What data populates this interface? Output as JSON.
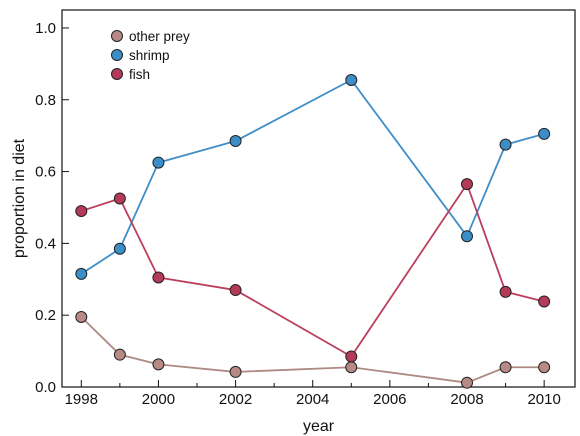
{
  "chart_data": {
    "type": "line",
    "title": "",
    "xlabel": "year",
    "ylabel": "proportion in diet",
    "xlim": [
      1997.5,
      2010.8
    ],
    "ylim": [
      0.0,
      1.05
    ],
    "grid": false,
    "legend_position": "top-left",
    "x_ticks": [
      1998,
      2000,
      2002,
      2004,
      2006,
      2008,
      2010
    ],
    "x_minor_ticks": [
      1999,
      2001,
      2003,
      2005,
      2007,
      2009
    ],
    "y_ticks": [
      "0.0",
      "0.2",
      "0.4",
      "0.6",
      "0.8",
      "1.0"
    ],
    "series": [
      {
        "name": "other prey",
        "color": "#b88a86",
        "line_color": "#ad8a82",
        "x": [
          1998,
          1999,
          2000,
          2002,
          2005,
          2008,
          2009,
          2010
        ],
        "values": [
          0.195,
          0.09,
          0.063,
          0.042,
          0.055,
          0.012,
          0.055,
          0.055
        ]
      },
      {
        "name": "shrimp",
        "color": "#3c8ec8",
        "line_color": "#3f8ec8",
        "x": [
          1998,
          1999,
          2000,
          2002,
          2005,
          2008,
          2009,
          2010
        ],
        "values": [
          0.315,
          0.385,
          0.625,
          0.685,
          0.855,
          0.42,
          0.675,
          0.705
        ]
      },
      {
        "name": "fish",
        "color": "#b53a5a",
        "line_color": "#bb3f5c",
        "x": [
          1998,
          1999,
          2000,
          2002,
          2005,
          2008,
          2009,
          2010
        ],
        "values": [
          0.49,
          0.525,
          0.305,
          0.27,
          0.085,
          0.565,
          0.265,
          0.238
        ]
      }
    ]
  }
}
